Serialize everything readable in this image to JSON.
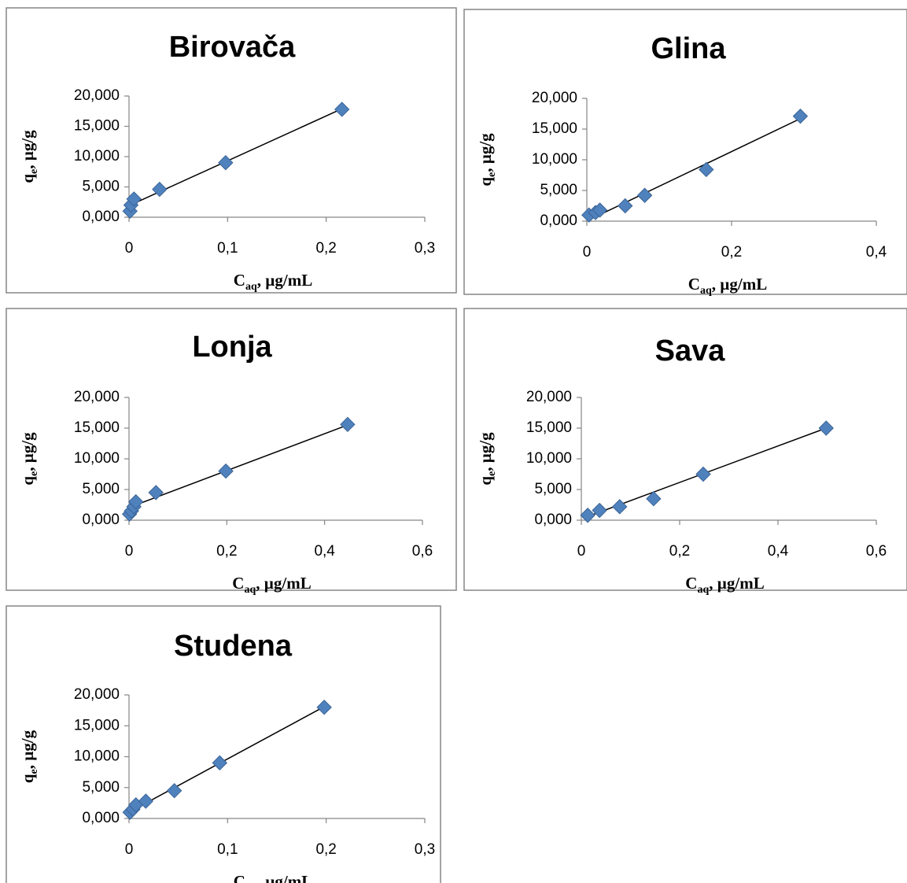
{
  "chart_data": [
    {
      "type": "scatter",
      "title": "Birovača",
      "xlabel": [
        "C",
        "aq",
        ", µg/mL"
      ],
      "ylabel": [
        "q",
        "e",
        ", µg/g"
      ],
      "x": [
        0.001,
        0.002,
        0.005,
        0.031,
        0.098,
        0.216
      ],
      "values": [
        1.0,
        2.0,
        3.0,
        4.6,
        9.0,
        17.8
      ],
      "trendline": {
        "x": [
          0.0,
          0.216
        ],
        "y": [
          1.9,
          17.9
        ]
      },
      "color": "#4f81bd",
      "xlim": [
        0,
        0.3
      ],
      "xticks": [
        0,
        {
          "value": 0.1,
          "label": "0,1"
        },
        {
          "value": 0.2,
          "label": "0,2"
        },
        {
          "value": 0.3,
          "label": "0,3"
        }
      ],
      "ylim": [
        0,
        20
      ],
      "yticks": [
        {
          "value": 0,
          "label": "0,000"
        },
        {
          "value": 5,
          "label": "5,000"
        },
        {
          "value": 10,
          "label": "10,000"
        },
        {
          "value": 15,
          "label": "15,000"
        },
        {
          "value": 20,
          "label": "20,000"
        }
      ]
    },
    {
      "type": "scatter",
      "title": "Glina",
      "xlabel": [
        "C",
        "aq",
        ", µg/mL"
      ],
      "ylabel": [
        "q",
        "e",
        ", µg/g"
      ],
      "x": [
        0.003,
        0.012,
        0.018,
        0.053,
        0.08,
        0.165,
        0.295
      ],
      "values": [
        1.0,
        1.4,
        1.8,
        2.5,
        4.2,
        8.4,
        17.1
      ],
      "trendline": {
        "x": [
          0.003,
          0.295
        ],
        "y": [
          0.2,
          16.7
        ]
      },
      "color": "#4f81bd",
      "xlim": [
        0,
        0.4
      ],
      "xticks": [
        0,
        {
          "value": 0.2,
          "label": "0,2"
        },
        {
          "value": 0.4,
          "label": "0,4"
        }
      ],
      "ylim": [
        0,
        20
      ],
      "yticks": [
        {
          "value": 0,
          "label": "0,000"
        },
        {
          "value": 5,
          "label": "5,000"
        },
        {
          "value": 10,
          "label": "10,000"
        },
        {
          "value": 15,
          "label": "15,000"
        },
        {
          "value": 20,
          "label": "20,000"
        }
      ]
    },
    {
      "type": "scatter",
      "title": "Lonja",
      "xlabel": [
        "C",
        "aq",
        ", µg/mL"
      ],
      "ylabel": [
        "q",
        "e",
        ", µg/g"
      ],
      "x": [
        0.001,
        0.005,
        0.01,
        0.014,
        0.055,
        0.198,
        0.447
      ],
      "values": [
        1.0,
        1.5,
        2.2,
        3.0,
        4.5,
        8.0,
        15.6
      ],
      "trendline": {
        "x": [
          0.001,
          0.447
        ],
        "y": [
          2.1,
          15.5
        ]
      },
      "color": "#4f81bd",
      "xlim": [
        0,
        0.6
      ],
      "xticks": [
        0,
        {
          "value": 0.2,
          "label": "0,2"
        },
        {
          "value": 0.4,
          "label": "0,4"
        },
        {
          "value": 0.6,
          "label": "0,6"
        }
      ],
      "ylim": [
        0,
        20
      ],
      "yticks": [
        {
          "value": 0,
          "label": "0,000"
        },
        {
          "value": 5,
          "label": "5,000"
        },
        {
          "value": 10,
          "label": "10,000"
        },
        {
          "value": 15,
          "label": "15,000"
        },
        {
          "value": 20,
          "label": "20,000"
        }
      ]
    },
    {
      "type": "scatter",
      "title": "Sava",
      "xlabel": [
        "C",
        "aq",
        ", µg/mL"
      ],
      "ylabel": [
        "q",
        "e",
        ", µg/g"
      ],
      "x": [
        0.013,
        0.037,
        0.078,
        0.147,
        0.248,
        0.498
      ],
      "values": [
        0.8,
        1.6,
        2.2,
        3.5,
        7.5,
        15.0
      ],
      "trendline": {
        "x": [
          0.013,
          0.498
        ],
        "y": [
          0.6,
          15.0
        ]
      },
      "color": "#4f81bd",
      "xlim": [
        0,
        0.6
      ],
      "xticks": [
        0,
        {
          "value": 0.2,
          "label": "0,2"
        },
        {
          "value": 0.4,
          "label": "0,4"
        },
        {
          "value": 0.6,
          "label": "0,6"
        }
      ],
      "ylim": [
        0,
        20
      ],
      "yticks": [
        {
          "value": 0,
          "label": "0,000"
        },
        {
          "value": 5,
          "label": "5,000"
        },
        {
          "value": 10,
          "label": "10,000"
        },
        {
          "value": 15,
          "label": "15,000"
        },
        {
          "value": 20,
          "label": "20,000"
        }
      ]
    },
    {
      "type": "scatter",
      "title": "Studena",
      "xlabel": [
        "C",
        "aq",
        ", µg/mL"
      ],
      "ylabel": [
        "q",
        "e",
        ", µg/g"
      ],
      "x": [
        0.001,
        0.004,
        0.007,
        0.017,
        0.046,
        0.092,
        0.198
      ],
      "values": [
        1.0,
        1.5,
        2.2,
        2.8,
        4.5,
        9.0,
        18.0
      ],
      "trendline": {
        "x": [
          0.001,
          0.198
        ],
        "y": [
          1.1,
          18.1
        ]
      },
      "color": "#4f81bd",
      "xlim": [
        0,
        0.3
      ],
      "xticks": [
        0,
        {
          "value": 0.1,
          "label": "0,1"
        },
        {
          "value": 0.2,
          "label": "0,2"
        },
        {
          "value": 0.3,
          "label": "0,3"
        }
      ],
      "ylim": [
        0,
        20
      ],
      "yticks": [
        {
          "value": 0,
          "label": "0,000"
        },
        {
          "value": 5,
          "label": "5,000"
        },
        {
          "value": 10,
          "label": "10,000"
        },
        {
          "value": 15,
          "label": "15,000"
        },
        {
          "value": 20,
          "label": "20,000"
        }
      ]
    }
  ]
}
